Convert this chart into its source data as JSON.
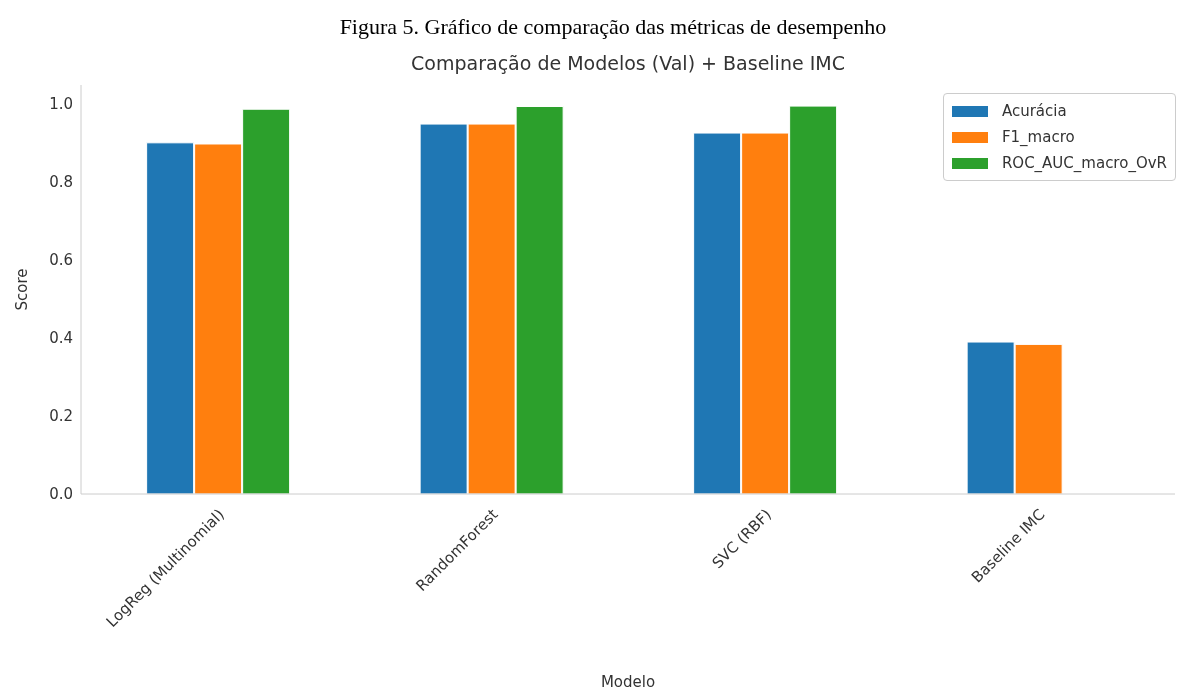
{
  "chart_data": {
    "type": "bar",
    "title": "Comparação de Modelos (Val) + Baseline IMC",
    "annotations": [
      "Figura 5. Gráfico de comparação das métricas de desempenho"
    ],
    "xlabel": "Modelo",
    "ylabel": "Score",
    "categories": [
      "LogReg (Multinomial)",
      "RandomForest",
      "SVC (RBF)",
      "Baseline IMC"
    ],
    "series": [
      {
        "name": "Acurácia",
        "color": "#1f77b4",
        "values": [
          0.899,
          0.947,
          0.924,
          0.389
        ]
      },
      {
        "name": "F1_macro",
        "color": "#ff7f0e",
        "values": [
          0.896,
          0.947,
          0.924,
          0.383
        ]
      },
      {
        "name": "ROC_AUC_macro_OvR",
        "color": "#2ca02c",
        "values": [
          0.985,
          0.992,
          0.993,
          null
        ]
      }
    ],
    "ylim": [
      0,
      1.047
    ],
    "yticks": [
      {
        "value": 0,
        "label": "0.0"
      },
      0.2,
      0.4,
      0.6,
      0.8,
      {
        "value": 1,
        "label": "1.0"
      }
    ],
    "grid": false,
    "legend": "top right"
  }
}
